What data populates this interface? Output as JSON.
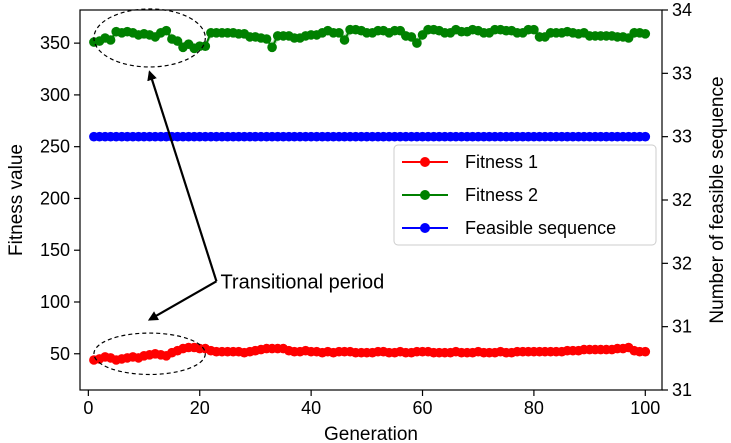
{
  "chart_data": {
    "type": "line",
    "title": "",
    "xlabel": "Generation",
    "ylabel_left": "Fitness value",
    "ylabel_right": "Number of feasible sequence",
    "xlim": [
      -1.5,
      103
    ],
    "ylim_left": [
      15,
      382
    ],
    "ylim_right": [
      31,
      34
    ],
    "x_ticks": [
      0,
      20,
      40,
      60,
      80,
      100
    ],
    "y_ticks_left": [
      50,
      100,
      150,
      200,
      250,
      300,
      350
    ],
    "y_ticks_right": [
      {
        "pos": 31.0,
        "label": "31"
      },
      {
        "pos": 31.5,
        "label": "31"
      },
      {
        "pos": 32.0,
        "label": "32"
      },
      {
        "pos": 32.5,
        "label": "32"
      },
      {
        "pos": 33.0,
        "label": "33"
      },
      {
        "pos": 33.5,
        "label": "33"
      },
      {
        "pos": 34.0,
        "label": "34"
      }
    ],
    "legend_position": "center-right",
    "grid": false,
    "series": [
      {
        "name": "Fitness 1",
        "color": "#ff0000",
        "axis": "left",
        "x": [
          1,
          2,
          3,
          4,
          5,
          6,
          7,
          8,
          9,
          10,
          11,
          12,
          13,
          14,
          15,
          16,
          17,
          18,
          19,
          20,
          21,
          22,
          23,
          24,
          25,
          26,
          27,
          28,
          29,
          30,
          31,
          32,
          33,
          34,
          35,
          36,
          37,
          38,
          39,
          40,
          41,
          42,
          43,
          44,
          45,
          46,
          47,
          48,
          49,
          50,
          51,
          52,
          53,
          54,
          55,
          56,
          57,
          58,
          59,
          60,
          61,
          62,
          63,
          64,
          65,
          66,
          67,
          68,
          69,
          70,
          71,
          72,
          73,
          74,
          75,
          76,
          77,
          78,
          79,
          80,
          81,
          82,
          83,
          84,
          85,
          86,
          87,
          88,
          89,
          90,
          91,
          92,
          93,
          94,
          95,
          96,
          97,
          98,
          99,
          100
        ],
        "y": [
          44,
          45,
          47,
          46,
          44,
          45,
          46,
          47,
          46,
          48,
          49,
          50,
          49,
          48,
          51,
          53,
          55,
          56,
          56,
          55,
          55,
          53,
          52,
          52,
          52,
          52,
          52,
          51,
          52,
          53,
          54,
          55,
          55,
          55,
          55,
          53,
          52,
          52,
          53,
          52,
          52,
          51,
          52,
          51,
          52,
          52,
          52,
          51,
          51,
          51,
          51,
          52,
          52,
          51,
          51,
          52,
          51,
          51,
          52,
          52,
          52,
          51,
          51,
          51,
          51,
          52,
          51,
          51,
          51,
          52,
          51,
          51,
          51,
          52,
          51,
          51,
          52,
          52,
          52,
          52,
          52,
          52,
          52,
          52,
          52,
          53,
          53,
          53,
          54,
          54,
          54,
          54,
          54,
          54,
          55,
          55,
          56,
          53,
          52,
          52
        ]
      },
      {
        "name": "Fitness 2",
        "color": "#008000",
        "axis": "left",
        "x": [
          1,
          2,
          3,
          4,
          5,
          6,
          7,
          8,
          9,
          10,
          11,
          12,
          13,
          14,
          15,
          16,
          17,
          18,
          19,
          20,
          21,
          22,
          23,
          24,
          25,
          26,
          27,
          28,
          29,
          30,
          31,
          32,
          33,
          34,
          35,
          36,
          37,
          38,
          39,
          40,
          41,
          42,
          43,
          44,
          45,
          46,
          47,
          48,
          49,
          50,
          51,
          52,
          53,
          54,
          55,
          56,
          57,
          58,
          59,
          60,
          61,
          62,
          63,
          64,
          65,
          66,
          67,
          68,
          69,
          70,
          71,
          72,
          73,
          74,
          75,
          76,
          77,
          78,
          79,
          80,
          81,
          82,
          83,
          84,
          85,
          86,
          87,
          88,
          89,
          90,
          91,
          92,
          93,
          94,
          95,
          96,
          97,
          98,
          99,
          100
        ],
        "y": [
          351,
          352,
          355,
          353,
          361,
          360,
          361,
          360,
          358,
          359,
          358,
          356,
          360,
          362,
          354,
          352,
          346,
          349,
          345,
          347,
          347,
          360,
          360,
          360,
          360,
          360,
          359,
          359,
          356,
          356,
          355,
          354,
          346,
          357,
          357,
          357,
          355,
          355,
          357,
          358,
          358,
          360,
          362,
          360,
          360,
          353,
          363,
          363,
          362,
          360,
          360,
          362,
          362,
          360,
          362,
          362,
          357,
          356,
          350,
          358,
          363,
          363,
          362,
          360,
          360,
          363,
          361,
          361,
          363,
          362,
          360,
          360,
          363,
          363,
          362,
          362,
          360,
          360,
          363,
          363,
          356,
          356,
          360,
          360,
          360,
          361,
          360,
          359,
          360,
          357,
          357,
          357,
          357,
          357,
          356,
          356,
          355,
          360,
          360,
          359
        ]
      },
      {
        "name": "Feasible sequence",
        "color": "#0000ff",
        "axis": "right",
        "x": [
          1,
          2,
          3,
          4,
          5,
          6,
          7,
          8,
          9,
          10,
          11,
          12,
          13,
          14,
          15,
          16,
          17,
          18,
          19,
          20,
          21,
          22,
          23,
          24,
          25,
          26,
          27,
          28,
          29,
          30,
          31,
          32,
          33,
          34,
          35,
          36,
          37,
          38,
          39,
          40,
          41,
          42,
          43,
          44,
          45,
          46,
          47,
          48,
          49,
          50,
          51,
          52,
          53,
          54,
          55,
          56,
          57,
          58,
          59,
          60,
          61,
          62,
          63,
          64,
          65,
          66,
          67,
          68,
          69,
          70,
          71,
          72,
          73,
          74,
          75,
          76,
          77,
          78,
          79,
          80,
          81,
          82,
          83,
          84,
          85,
          86,
          87,
          88,
          89,
          90,
          91,
          92,
          93,
          94,
          95,
          96,
          97,
          98,
          99,
          100
        ],
        "y": [
          33,
          33,
          33,
          33,
          33,
          33,
          33,
          33,
          33,
          33,
          33,
          33,
          33,
          33,
          33,
          33,
          33,
          33,
          33,
          33,
          33,
          33,
          33,
          33,
          33,
          33,
          33,
          33,
          33,
          33,
          33,
          33,
          33,
          33,
          33,
          33,
          33,
          33,
          33,
          33,
          33,
          33,
          33,
          33,
          33,
          33,
          33,
          33,
          33,
          33,
          33,
          33,
          33,
          33,
          33,
          33,
          33,
          33,
          33,
          33,
          33,
          33,
          33,
          33,
          33,
          33,
          33,
          33,
          33,
          33,
          33,
          33,
          33,
          33,
          33,
          33,
          33,
          33,
          33,
          33,
          33,
          33,
          33,
          33,
          33,
          33,
          33,
          33,
          33,
          33,
          33,
          33,
          33,
          33,
          33,
          33,
          33,
          33,
          33,
          33
        ]
      }
    ],
    "annotation": {
      "text": "Transitional period",
      "ellipses": [
        {
          "cx": 11,
          "cy": 355,
          "rx": 10,
          "ry": 28
        },
        {
          "cx": 11,
          "cy": 50,
          "rx": 10,
          "ry": 20
        }
      ],
      "arrow_targets": [
        {
          "x": 11,
          "y": 322
        },
        {
          "x": 11,
          "y": 83
        }
      ],
      "arrow_origin": {
        "x": 23,
        "y": 120
      }
    }
  }
}
